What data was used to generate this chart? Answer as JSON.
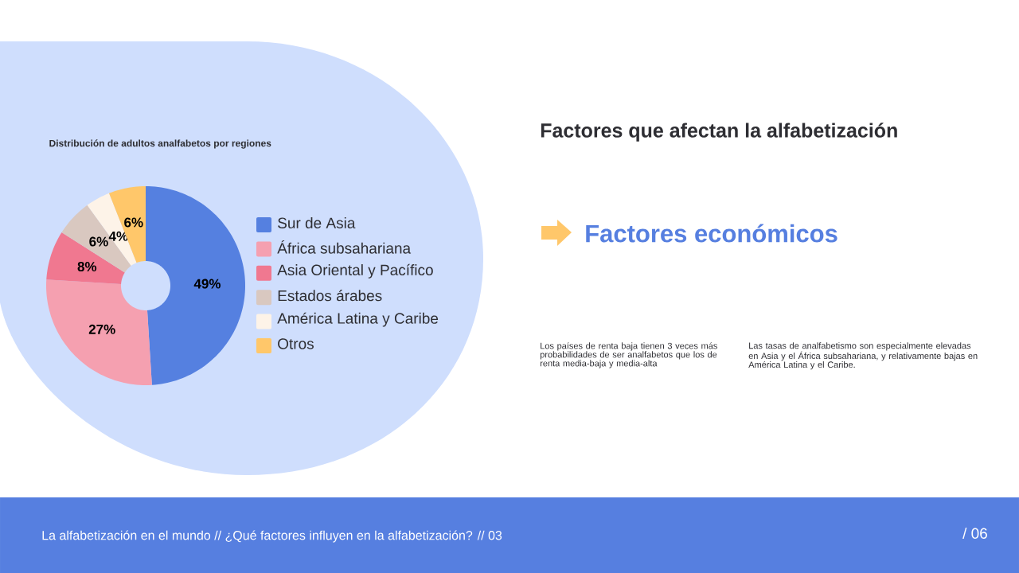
{
  "chart_data": {
    "type": "donut",
    "title": "Distribución de adultos analfabetos por regiones",
    "categories": [
      "Sur de Asia",
      "África subsahariana",
      "Asia Oriental y Pacífico",
      "Estados árabes",
      "América Latina y Caribe",
      "Otros"
    ],
    "values": [
      49,
      27,
      8,
      6,
      4,
      6
    ],
    "colors": [
      "#5580e0",
      "#f5a0b0",
      "#f07890",
      "#d9c8c0",
      "#fdf3e8",
      "#ffc76a"
    ],
    "value_labels": [
      "49%",
      "27%",
      "8%",
      "6%",
      "4%",
      "6%"
    ],
    "legend": "right",
    "annotations": [
      "Factores que afectan la alfabetización",
      "Factores económicos",
      "Los países de renta baja tienen 3 veces más probabilidades de ser analfabetos que los de renta media-baja y media-alta",
      "Las tasas de analfabetismo son especialmente elevadas en Asia y el África subsahariana, y relativamente bajas en América Latina y el Caribe.",
      "La alfabetización en el mundo // ¿Qué factores influyen en la alfabetización? // 03",
      "/ 06"
    ]
  }
}
